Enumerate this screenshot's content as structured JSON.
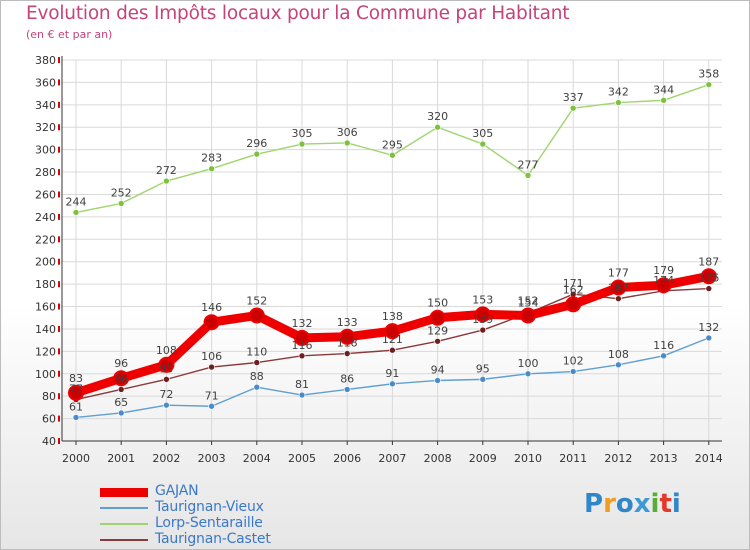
{
  "page": {
    "title": "Evolution des Impôts locaux pour la Commune par Habitant",
    "subtitle": "(en € et par an)",
    "brand": "Proxiti"
  },
  "colors": {
    "title": "#c4447a",
    "legend_text": "#3c78c8",
    "grid": "#d9d9d9",
    "axis_ticks": "#e00000"
  },
  "chart_data": {
    "type": "line",
    "title": "Evolution des Impôts locaux pour la Commune par Habitant",
    "subtitle": "(en € et par an)",
    "xlabel": "",
    "ylabel": "",
    "x": [
      2000,
      2001,
      2002,
      2003,
      2004,
      2005,
      2006,
      2007,
      2008,
      2009,
      2010,
      2011,
      2012,
      2013,
      2014
    ],
    "ylim": [
      40,
      380
    ],
    "yticks": [
      40,
      60,
      80,
      100,
      120,
      140,
      160,
      180,
      200,
      220,
      240,
      260,
      280,
      300,
      320,
      340,
      360,
      380
    ],
    "grid": true,
    "legend_position": "bottom-left",
    "series": [
      {
        "name": "Taurignan-Vieux",
        "color": "#5f9fd3",
        "marker": "#4a8cc9",
        "values": [
          61,
          65,
          72,
          71,
          88,
          81,
          86,
          91,
          94,
          95,
          100,
          102,
          108,
          116,
          132
        ],
        "labels": [
          "61",
          "65",
          "72",
          "71",
          "88",
          "81",
          "86",
          "91",
          "94",
          "95",
          "100",
          "102",
          "108",
          "116",
          "132"
        ],
        "label_pos": "above"
      },
      {
        "name": "Lorp-Sentaraille",
        "color": "#9fd56e",
        "marker": "#7cc23c",
        "values": [
          244,
          252,
          272,
          283,
          296,
          305,
          306,
          295,
          320,
          305,
          277,
          337,
          342,
          344,
          358
        ],
        "labels": [
          "244",
          "252",
          "272",
          "283",
          "296",
          "305",
          "306",
          "295",
          "320",
          "305",
          "277",
          "337",
          "342",
          "344",
          "358"
        ],
        "label_pos": "above"
      },
      {
        "name": "Taurignan-Castet",
        "color": "#8a3a3a",
        "marker": "#6e1e1e",
        "values": [
          77,
          86,
          95,
          106,
          110,
          116,
          118,
          121,
          129,
          139,
          154,
          171,
          167,
          174,
          176
        ],
        "labels": [
          "77",
          "86",
          "95",
          "106",
          "110",
          "116",
          "118",
          "121",
          "129",
          "139",
          "154",
          "171",
          "167",
          "174",
          "176"
        ],
        "label_pos": "above"
      },
      {
        "name": "GAJAN",
        "color": "#ee0000",
        "marker": "#cc0000",
        "values": [
          83,
          96,
          108,
          146,
          152,
          132,
          133,
          138,
          150,
          153,
          152,
          162,
          177,
          179,
          187
        ],
        "labels": [
          "83",
          "96",
          "108",
          "146",
          "152",
          "132",
          "133",
          "138",
          "150",
          "153",
          "152",
          "162",
          "177",
          "179",
          "187"
        ],
        "label_pos": "above"
      }
    ]
  }
}
